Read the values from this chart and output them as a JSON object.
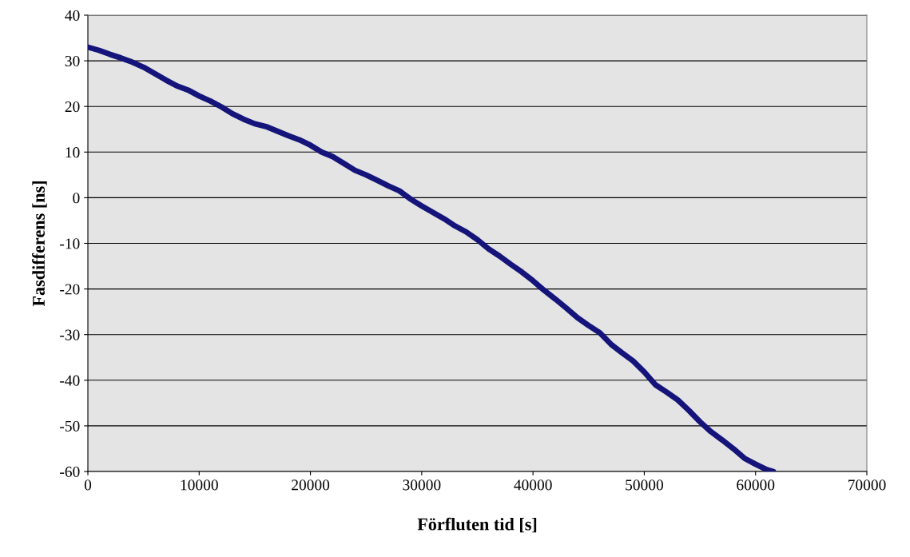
{
  "chart_data": {
    "type": "line",
    "xlabel": "Förfluten tid [s]",
    "ylabel": "Fasdifferens [ns]",
    "x": [
      0,
      1000,
      2000,
      3000,
      4000,
      5000,
      6000,
      7000,
      8000,
      9000,
      10000,
      11000,
      12000,
      13000,
      14000,
      15000,
      16000,
      17000,
      18000,
      19000,
      20000,
      21000,
      22000,
      23000,
      24000,
      25000,
      26000,
      27000,
      28000,
      29000,
      30000,
      31000,
      32000,
      33000,
      34000,
      35000,
      36000,
      37000,
      38000,
      39000,
      40000,
      41000,
      42000,
      43000,
      44000,
      45000,
      46000,
      47000,
      48000,
      49000,
      50000,
      51000,
      52000,
      53000,
      54000,
      55000,
      56000,
      57000,
      58000,
      59000,
      60000,
      61000,
      61600
    ],
    "series": [
      {
        "color": "#14147a",
        "values": [
          33,
          32.3,
          31.4,
          30.6,
          29.7,
          28.6,
          27.2,
          25.8,
          24.5,
          23.6,
          22.3,
          21.2,
          19.9,
          18.4,
          17.2,
          16.2,
          15.6,
          14.6,
          13.6,
          12.7,
          11.5,
          10,
          9,
          7.5,
          6,
          5,
          3.8,
          2.6,
          1.5,
          -0.3,
          -1.8,
          -3.2,
          -4.6,
          -6.2,
          -7.5,
          -9.2,
          -11.2,
          -12.8,
          -14.6,
          -16.3,
          -18.2,
          -20.3,
          -22.2,
          -24.2,
          -26.3,
          -28,
          -29.6,
          -32.1,
          -34,
          -35.8,
          -38.2,
          -41,
          -42.6,
          -44.3,
          -46.6,
          -49.1,
          -51.3,
          -53.1,
          -55,
          -57.1,
          -58.4,
          -59.6,
          -60
        ]
      }
    ],
    "xlim": [
      0,
      70000
    ],
    "ylim": [
      -60,
      40
    ],
    "xticks": [
      0,
      10000,
      20000,
      30000,
      40000,
      50000,
      60000,
      70000
    ],
    "yticks": [
      -60,
      -50,
      -40,
      -30,
      -20,
      -10,
      0,
      10,
      20,
      30,
      40
    ],
    "grid": "y",
    "marker": "none",
    "line_style": "solid",
    "legend": false
  }
}
